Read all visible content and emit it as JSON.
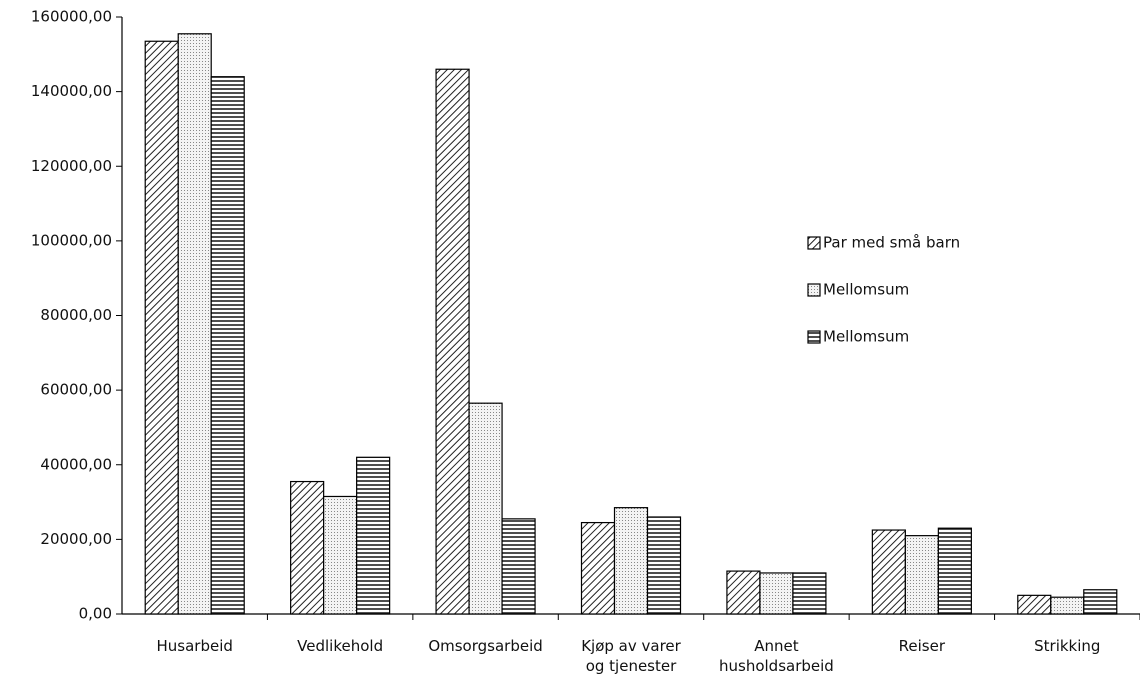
{
  "chart_data": {
    "type": "bar",
    "categories": [
      "Husarbeid",
      "Vedlikehold",
      "Omsorgsarbeid",
      "Kjøp av varer\nog tjenester",
      "Annet\nhusholdsarbeid",
      "Reiser",
      "Strikking"
    ],
    "series": [
      {
        "name": "Par med små barn",
        "color": "#000000",
        "pattern": "diagonal",
        "values": [
          153500,
          35500,
          146000,
          24500,
          11500,
          22500,
          5000
        ]
      },
      {
        "name": "Mellomsum",
        "color": "#000000",
        "pattern": "dots",
        "values": [
          155500,
          31500,
          56500,
          28500,
          11000,
          21000,
          4500
        ]
      },
      {
        "name": "Mellomsum",
        "color": "#000000",
        "pattern": "horizontal",
        "values": [
          144000,
          42000,
          25500,
          26000,
          11000,
          23000,
          6500
        ]
      }
    ],
    "ylim": [
      0,
      160000
    ],
    "yticks": [
      {
        "value": 0,
        "label": "0,00"
      },
      {
        "value": 20000,
        "label": "20000,00"
      },
      {
        "value": 40000,
        "label": "40000,00"
      },
      {
        "value": 60000,
        "label": "60000,00"
      },
      {
        "value": 80000,
        "label": "80000,00"
      },
      {
        "value": 100000,
        "label": "100000,00"
      },
      {
        "value": 120000,
        "label": "120000,00"
      },
      {
        "value": 140000,
        "label": "140000,00"
      },
      {
        "value": 160000,
        "label": "160000,00"
      }
    ],
    "grid": false,
    "legend": "right"
  }
}
